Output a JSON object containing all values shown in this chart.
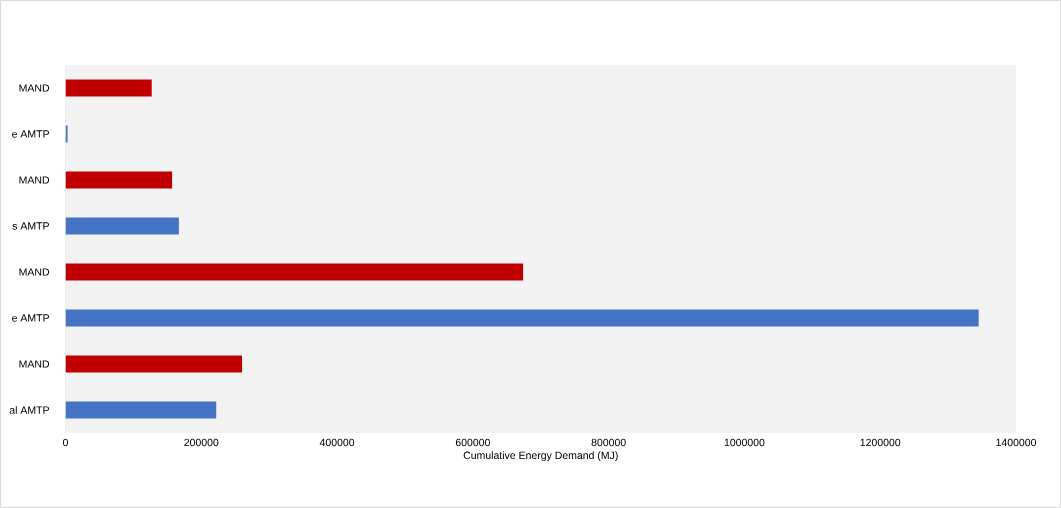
{
  "chart_data": {
    "type": "bar",
    "orientation": "horizontal",
    "xlabel": "Cumulative Energy Demand (MJ)",
    "categories": [
      "MAND",
      "e AMTP",
      "MAND",
      "s AMTP",
      "MAND",
      "e AMTP",
      "MAND",
      "al AMTP"
    ],
    "values": [
      127000,
      3000,
      157000,
      167000,
      674000,
      1345000,
      260000,
      222000
    ],
    "colors": [
      "#c00000",
      "#4472c4",
      "#c00000",
      "#4472c4",
      "#c00000",
      "#4472c4",
      "#c00000",
      "#4472c4"
    ],
    "xlim": [
      0,
      1400000
    ],
    "xticks": [
      0,
      200000,
      400000,
      600000,
      800000,
      1000000,
      1200000,
      1400000
    ],
    "grid": false
  }
}
